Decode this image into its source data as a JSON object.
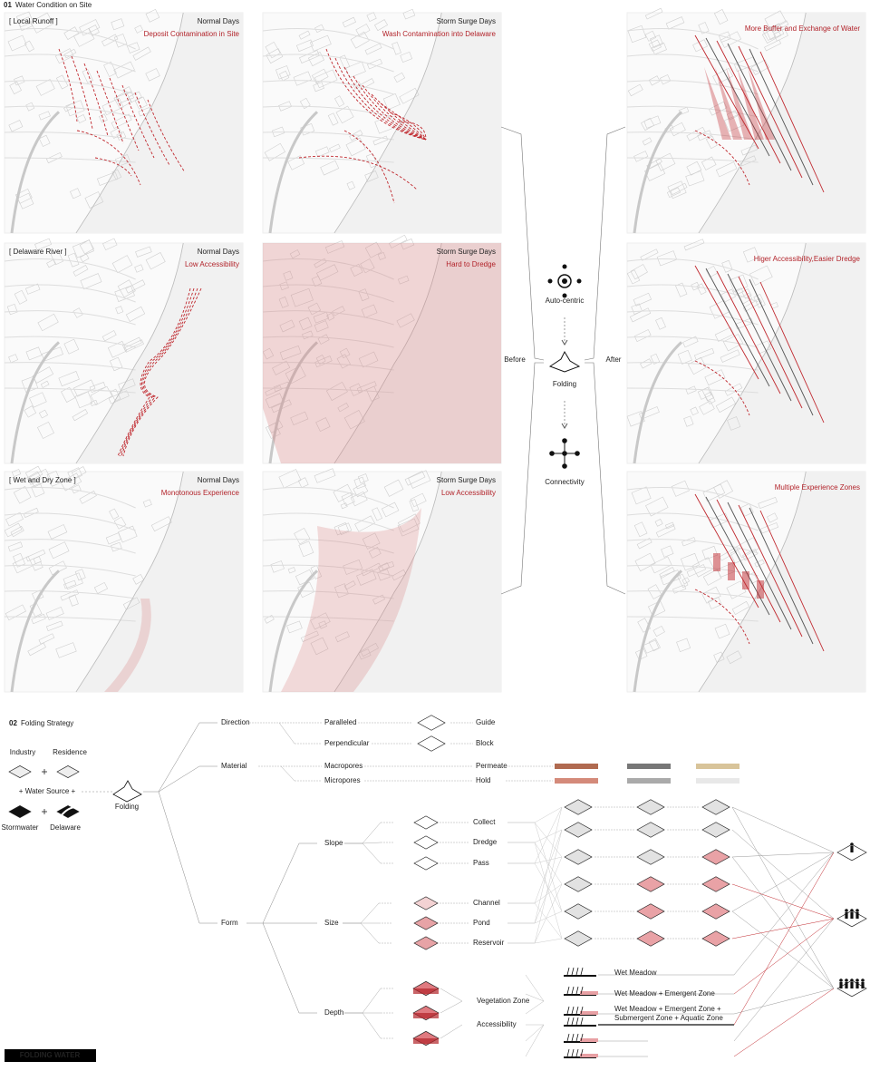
{
  "section1": {
    "number": "01",
    "title": "Water Condition on Site"
  },
  "rows": [
    {
      "label": "[ Local Runoff ]",
      "normal": {
        "heading": "Normal Days",
        "note": "Deposit Contamination in Site"
      },
      "storm": {
        "heading": "Storm Surge Days",
        "note": "Wash Contamination into Delaware"
      },
      "after": "More Buffer and Exchange of Water"
    },
    {
      "label": "[ Delaware River ]",
      "normal": {
        "heading": "Normal Days",
        "note": "Low Accessibility"
      },
      "storm": {
        "heading": "Storm Surge Days",
        "note": "Hard to Dredge"
      },
      "after": "Higer Accessibility,Easier Dredge"
    },
    {
      "label": "[ Wet and Dry Zone ]",
      "normal": {
        "heading": "Normal Days",
        "note": "Monotonous Experience"
      },
      "storm": {
        "heading": "Storm Surge Days",
        "note": "Low Accessibility"
      },
      "after": "Multiple Experience Zones"
    }
  ],
  "center": {
    "before": "Before",
    "after": "After",
    "steps": [
      "Auto-centric",
      "Folding",
      "Connectivity"
    ]
  },
  "section2": {
    "number": "02",
    "title": "Folding Strategy"
  },
  "sources": {
    "industry": "Industry",
    "residence": "Residence",
    "water_source": "+ Water Source +",
    "stormwater": "Stormwater",
    "delaware": "Delaware",
    "folding": "Folding"
  },
  "tree": {
    "direction": {
      "label": "Direction",
      "options": [
        {
          "label": "Paralleled",
          "result": "Guide"
        },
        {
          "label": "Perpendicular",
          "result": "Block"
        }
      ]
    },
    "material": {
      "label": "Material",
      "options": [
        {
          "label": "Macropores",
          "result": "Permeate"
        },
        {
          "label": "Micropores",
          "result": "Hold"
        }
      ]
    },
    "form": {
      "label": "Form",
      "slope": {
        "label": "Slope",
        "results": [
          "Collect",
          "Dredge",
          "Pass"
        ]
      },
      "size": {
        "label": "Size",
        "results": [
          "Channel",
          "Pond",
          "Reservoir"
        ]
      },
      "depth": {
        "label": "Depth",
        "results": [
          "Vegetation Zone",
          "Accessibility"
        ]
      }
    }
  },
  "vegetation": [
    [
      "Wet Meadow"
    ],
    [
      "Wet Meadow + Emergent Zone"
    ],
    [
      "Wet Meadow + Emergent Zone +",
      "Submergent Zone + Aquatic Zone"
    ]
  ],
  "footer": "FOLDING WATER"
}
